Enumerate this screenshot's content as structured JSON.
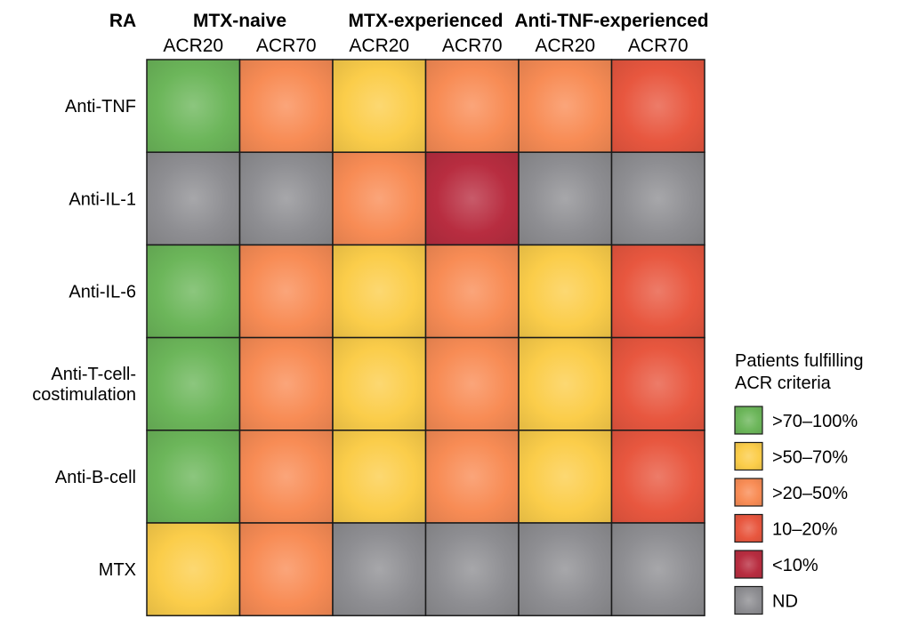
{
  "chart_data": {
    "type": "heatmap",
    "corner_label": "RA",
    "groups": [
      "MTX-naive",
      "MTX-experienced",
      "Anti-TNF-experienced"
    ],
    "columns": [
      {
        "group": "MTX-naive",
        "label": "ACR20"
      },
      {
        "group": "MTX-naive",
        "label": "ACR70"
      },
      {
        "group": "MTX-experienced",
        "label": "ACR20"
      },
      {
        "group": "MTX-experienced",
        "label": "ACR70"
      },
      {
        "group": "Anti-TNF-experienced",
        "label": "ACR20"
      },
      {
        "group": "Anti-TNF-experienced",
        "label": "ACR70"
      }
    ],
    "rows": [
      {
        "label": [
          "Anti-TNF"
        ],
        "values": [
          ">70–100%",
          ">20–50%",
          ">50–70%",
          ">20–50%",
          ">20–50%",
          "10–20%"
        ]
      },
      {
        "label": [
          "Anti-IL-1"
        ],
        "values": [
          "ND",
          "ND",
          ">20–50%",
          "<10%",
          "ND",
          "ND"
        ]
      },
      {
        "label": [
          "Anti-IL-6"
        ],
        "values": [
          ">70–100%",
          ">20–50%",
          ">50–70%",
          ">20–50%",
          ">50–70%",
          "10–20%"
        ]
      },
      {
        "label": [
          "Anti-T-cell-",
          "costimulation"
        ],
        "values": [
          ">70–100%",
          ">20–50%",
          ">50–70%",
          ">20–50%",
          ">50–70%",
          "10–20%"
        ]
      },
      {
        "label": [
          "Anti-B-cell"
        ],
        "values": [
          ">70–100%",
          ">20–50%",
          ">50–70%",
          ">20–50%",
          ">50–70%",
          "10–20%"
        ]
      },
      {
        "label": [
          "MTX"
        ],
        "values": [
          ">50–70%",
          ">20–50%",
          "ND",
          "ND",
          "ND",
          "ND"
        ]
      }
    ],
    "legend": {
      "title": [
        "Patients fulfilling",
        "ACR criteria"
      ],
      "entries": [
        {
          "label": ">70–100%",
          "color": "#6cb65a"
        },
        {
          "label": ">50–70%",
          "color": "#fbcd4a"
        },
        {
          "label": ">20–50%",
          "color": "#f88c55"
        },
        {
          "label": "10–20%",
          "color": "#e8573f"
        },
        {
          "label": "<10%",
          "color": "#b82d40"
        },
        {
          "label": "ND",
          "color": "#8e8e92"
        }
      ]
    }
  }
}
